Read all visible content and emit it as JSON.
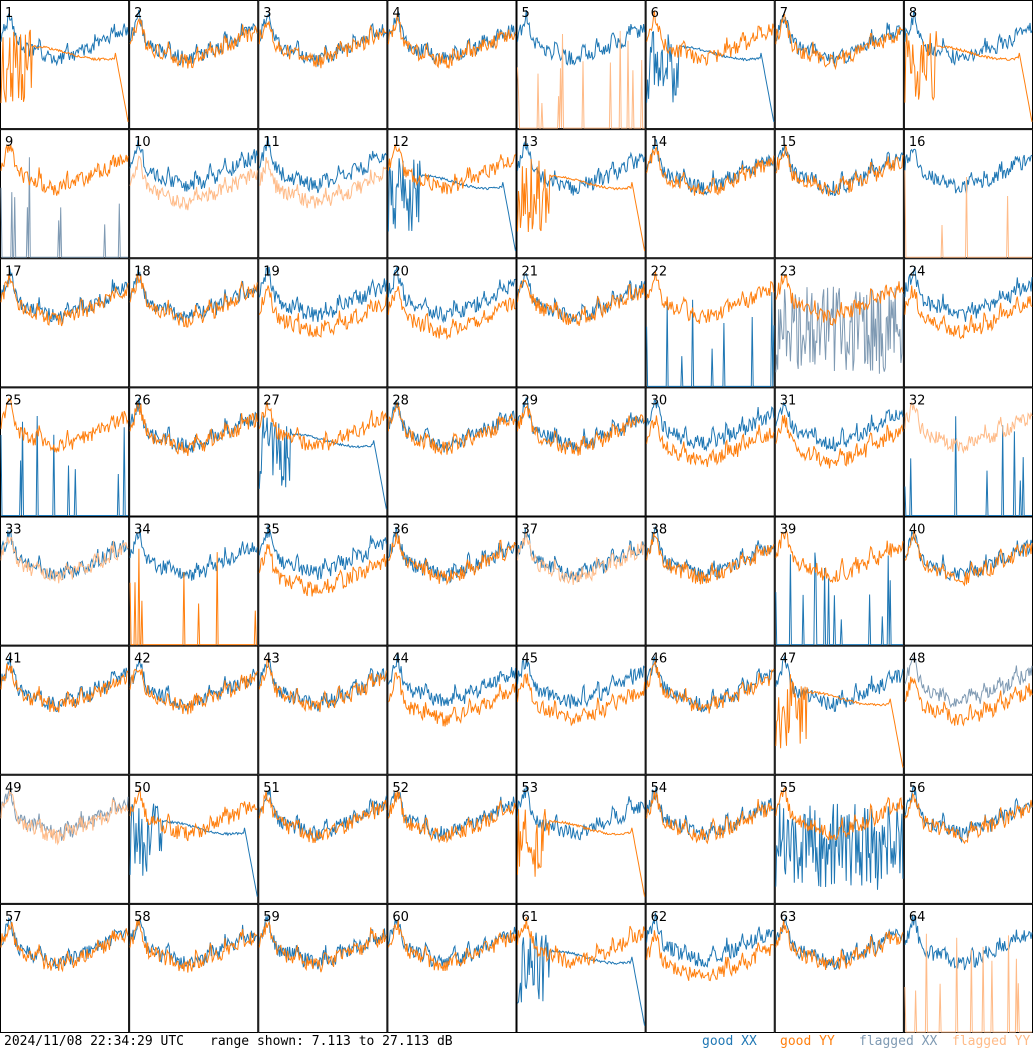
{
  "chart_data": {
    "type": "line",
    "grid_rows": 8,
    "grid_cols": 8,
    "ylim": [
      7.113,
      27.113
    ],
    "unit": "dB",
    "panels": [
      {
        "n": "1",
        "xx": "good",
        "yy": "good",
        "shape": "yy-droop"
      },
      {
        "n": "2",
        "xx": "good",
        "yy": "good",
        "shape": "normal"
      },
      {
        "n": "3",
        "xx": "good",
        "yy": "good",
        "shape": "normal"
      },
      {
        "n": "4",
        "xx": "good",
        "yy": "good",
        "shape": "normal"
      },
      {
        "n": "5",
        "xx": "good",
        "yy": "flagged",
        "shape": "yy-spikes"
      },
      {
        "n": "6",
        "xx": "good",
        "yy": "good",
        "shape": "xx-droop"
      },
      {
        "n": "7",
        "xx": "good",
        "yy": "good",
        "shape": "normal"
      },
      {
        "n": "8",
        "xx": "good",
        "yy": "good",
        "shape": "yy-droop"
      },
      {
        "n": "9",
        "xx": "flagged",
        "yy": "good",
        "shape": "xx-spikes"
      },
      {
        "n": "10",
        "xx": "good",
        "yy": "flagged",
        "shape": "split"
      },
      {
        "n": "11",
        "xx": "good",
        "yy": "flagged",
        "shape": "split"
      },
      {
        "n": "12",
        "xx": "good",
        "yy": "good",
        "shape": "xx-droop"
      },
      {
        "n": "13",
        "xx": "good",
        "yy": "good",
        "shape": "yy-droop"
      },
      {
        "n": "14",
        "xx": "good",
        "yy": "good",
        "shape": "normal"
      },
      {
        "n": "15",
        "xx": "good",
        "yy": "good",
        "shape": "normal"
      },
      {
        "n": "16",
        "xx": "good",
        "yy": "flagged",
        "shape": "yy-spikes"
      },
      {
        "n": "17",
        "xx": "good",
        "yy": "good",
        "shape": "normal"
      },
      {
        "n": "18",
        "xx": "good",
        "yy": "good",
        "shape": "normal"
      },
      {
        "n": "19",
        "xx": "good",
        "yy": "good",
        "shape": "split"
      },
      {
        "n": "20",
        "xx": "good",
        "yy": "good",
        "shape": "split"
      },
      {
        "n": "21",
        "xx": "good",
        "yy": "good",
        "shape": "normal"
      },
      {
        "n": "22",
        "xx": "good",
        "yy": "good",
        "shape": "xx-spikes"
      },
      {
        "n": "23",
        "xx": "flagged",
        "yy": "good",
        "shape": "xx-noise"
      },
      {
        "n": "24",
        "xx": "good",
        "yy": "good",
        "shape": "split"
      },
      {
        "n": "25",
        "xx": "good",
        "yy": "good",
        "shape": "xx-spikes"
      },
      {
        "n": "26",
        "xx": "good",
        "yy": "good",
        "shape": "normal"
      },
      {
        "n": "27",
        "xx": "good",
        "yy": "good",
        "shape": "xx-droop"
      },
      {
        "n": "28",
        "xx": "good",
        "yy": "good",
        "shape": "normal"
      },
      {
        "n": "29",
        "xx": "good",
        "yy": "good",
        "shape": "normal"
      },
      {
        "n": "30",
        "xx": "good",
        "yy": "good",
        "shape": "split"
      },
      {
        "n": "31",
        "xx": "good",
        "yy": "good",
        "shape": "split"
      },
      {
        "n": "32",
        "xx": "good",
        "yy": "flagged",
        "shape": "xx-spikes"
      },
      {
        "n": "33",
        "xx": "good",
        "yy": "flagged",
        "shape": "normal"
      },
      {
        "n": "34",
        "xx": "good",
        "yy": "good",
        "shape": "yy-spikes"
      },
      {
        "n": "35",
        "xx": "good",
        "yy": "good",
        "shape": "split"
      },
      {
        "n": "36",
        "xx": "good",
        "yy": "good",
        "shape": "normal"
      },
      {
        "n": "37",
        "xx": "good",
        "yy": "flagged",
        "shape": "normal"
      },
      {
        "n": "38",
        "xx": "good",
        "yy": "good",
        "shape": "normal"
      },
      {
        "n": "39",
        "xx": "good",
        "yy": "good",
        "shape": "xx-spikes"
      },
      {
        "n": "40",
        "xx": "good",
        "yy": "good",
        "shape": "normal"
      },
      {
        "n": "41",
        "xx": "good",
        "yy": "good",
        "shape": "normal"
      },
      {
        "n": "42",
        "xx": "good",
        "yy": "good",
        "shape": "normal"
      },
      {
        "n": "43",
        "xx": "good",
        "yy": "good",
        "shape": "normal"
      },
      {
        "n": "44",
        "xx": "good",
        "yy": "good",
        "shape": "split"
      },
      {
        "n": "45",
        "xx": "good",
        "yy": "good",
        "shape": "split"
      },
      {
        "n": "46",
        "xx": "good",
        "yy": "good",
        "shape": "normal"
      },
      {
        "n": "47",
        "xx": "good",
        "yy": "good",
        "shape": "yy-droop"
      },
      {
        "n": "48",
        "xx": "flagged",
        "yy": "good",
        "shape": "split"
      },
      {
        "n": "49",
        "xx": "flagged",
        "yy": "flagged",
        "shape": "normal"
      },
      {
        "n": "50",
        "xx": "good",
        "yy": "good",
        "shape": "xx-droop"
      },
      {
        "n": "51",
        "xx": "good",
        "yy": "good",
        "shape": "normal"
      },
      {
        "n": "52",
        "xx": "good",
        "yy": "good",
        "shape": "normal"
      },
      {
        "n": "53",
        "xx": "good",
        "yy": "good",
        "shape": "yy-droop"
      },
      {
        "n": "54",
        "xx": "good",
        "yy": "good",
        "shape": "normal"
      },
      {
        "n": "55",
        "xx": "good",
        "yy": "good",
        "shape": "xx-noise"
      },
      {
        "n": "56",
        "xx": "good",
        "yy": "good",
        "shape": "normal"
      },
      {
        "n": "57",
        "xx": "good",
        "yy": "good",
        "shape": "normal"
      },
      {
        "n": "58",
        "xx": "good",
        "yy": "good",
        "shape": "normal"
      },
      {
        "n": "59",
        "xx": "good",
        "yy": "good",
        "shape": "normal"
      },
      {
        "n": "60",
        "xx": "good",
        "yy": "good",
        "shape": "normal"
      },
      {
        "n": "61",
        "xx": "good",
        "yy": "good",
        "shape": "xx-droop"
      },
      {
        "n": "62",
        "xx": "good",
        "yy": "good",
        "shape": "split"
      },
      {
        "n": "63",
        "xx": "good",
        "yy": "good",
        "shape": "normal"
      },
      {
        "n": "64",
        "xx": "good",
        "yy": "flagged",
        "shape": "yy-spikes"
      }
    ],
    "colors": {
      "good_xx": "#1f77b4",
      "good_yy": "#ff7f0e",
      "flagged_xx": "#7f9ab3",
      "flagged_yy": "#ffbb88"
    }
  },
  "footer": {
    "timestamp": "2024/11/08 22:34:29 UTC",
    "range": "range shown: 7.113 to 27.113 dB",
    "legend_good_xx": "good XX",
    "legend_good_yy": "good YY",
    "legend_flagged_xx": "flagged XX",
    "legend_flagged_yy": "flagged YY"
  }
}
